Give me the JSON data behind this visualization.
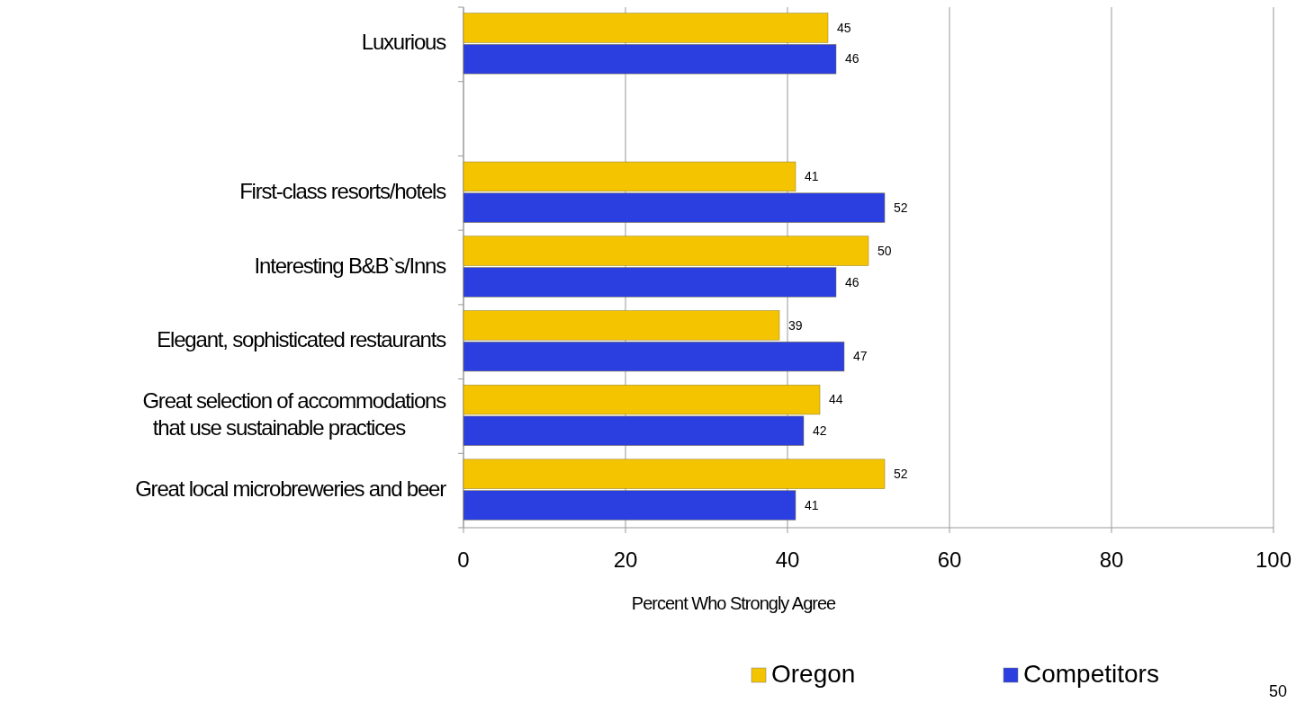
{
  "chart_data": {
    "type": "bar",
    "orientation": "horizontal",
    "categories": [
      "Luxurious",
      null,
      "First-class resorts/hotels",
      "Interesting B&B`s/Inns",
      "Elegant, sophisticated restaurants",
      "Great selection of accommodations\nthat use sustainable practices",
      "Great local microbreweries and beer"
    ],
    "series": [
      {
        "name": "Oregon",
        "color": "#f5c400",
        "values": [
          45,
          null,
          41,
          50,
          39,
          44,
          52
        ]
      },
      {
        "name": "Competitors",
        "color": "#2b3ee0",
        "values": [
          46,
          null,
          52,
          46,
          47,
          42,
          41
        ]
      }
    ],
    "xlim": [
      0,
      100
    ],
    "xticks": [
      0,
      20,
      40,
      60,
      80,
      100
    ],
    "xlabel": "Percent Who Strongly Agree",
    "grid": "x",
    "legend": "bottom",
    "data_labels": true,
    "annotations": [
      "50"
    ]
  }
}
